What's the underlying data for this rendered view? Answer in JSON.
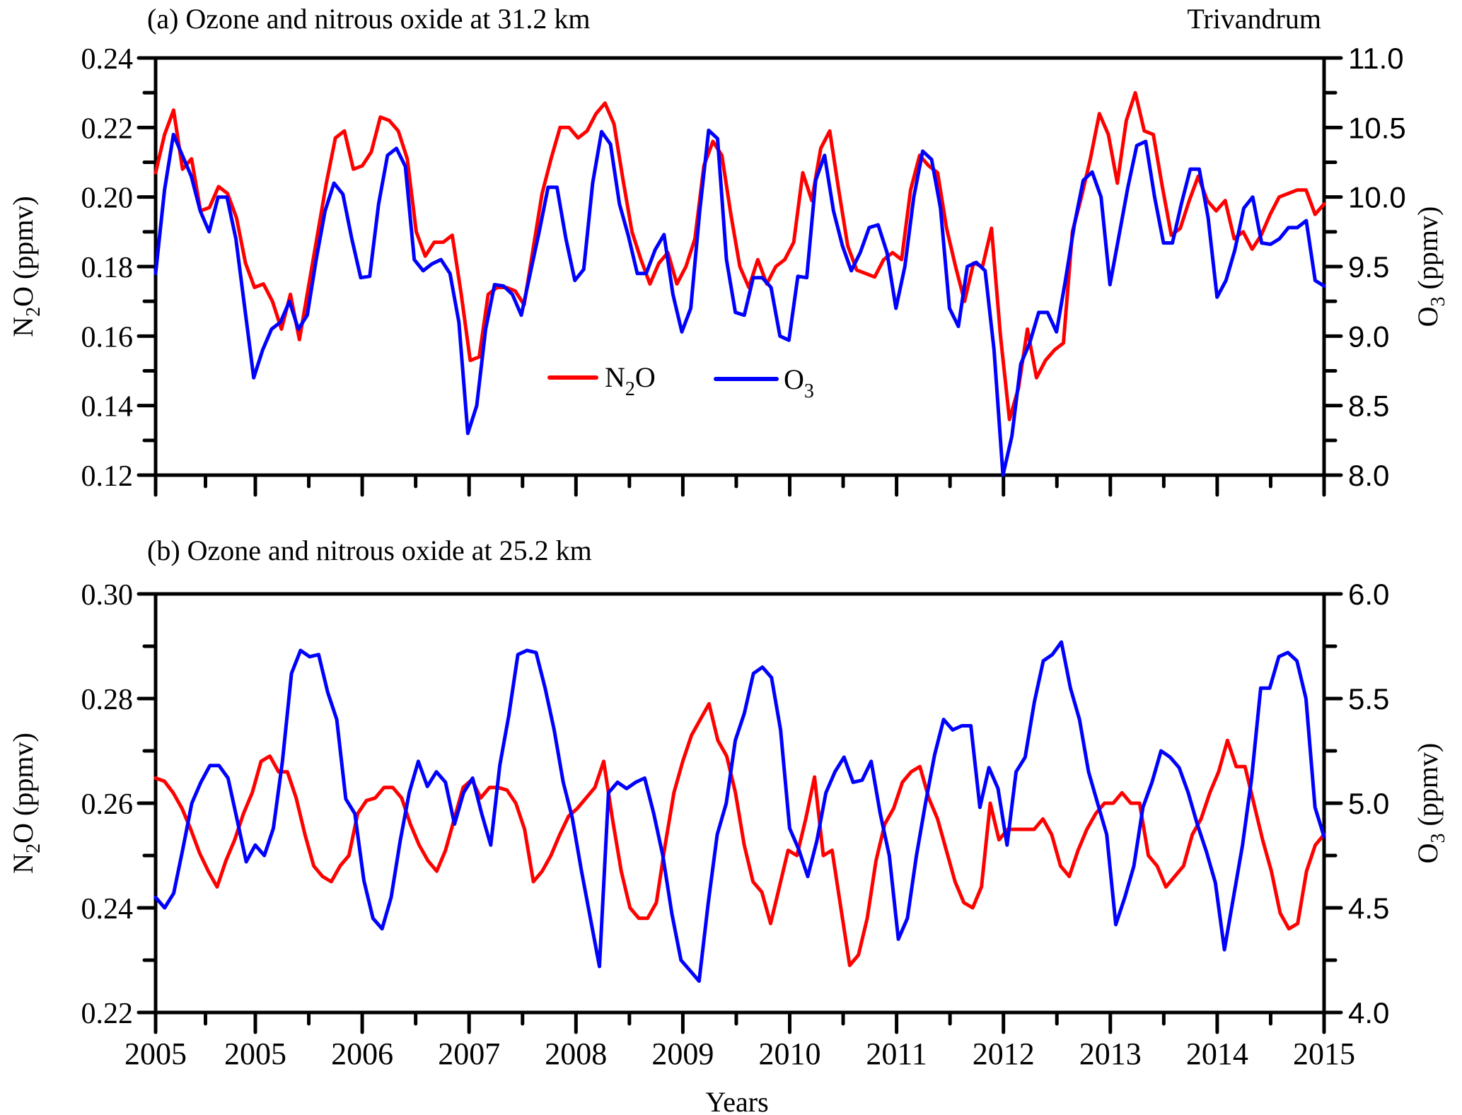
{
  "chart_data": [
    {
      "type": "line",
      "panel": "a",
      "title": "(a) Ozone and  nitrous oxide at 31.2 km",
      "annotation": "Trivandrum",
      "xlabel": "",
      "ylabel_left": {
        "main": "N",
        "sub": "2",
        "rest": "O (ppmv)"
      },
      "ylabel_right": {
        "main": "O",
        "sub": "3",
        "rest": " (ppmv)"
      },
      "ylim_left": [
        0.12,
        0.24
      ],
      "ylim_right": [
        8.0,
        11.0
      ],
      "yticks_left": [
        "0.12",
        "0.14",
        "0.16",
        "0.18",
        "0.20",
        "0.22",
        "0.24"
      ],
      "yticks_right": [
        "8.0",
        "8.5",
        "9.0",
        "9.5",
        "10.0",
        "10.5",
        "11.0"
      ],
      "x_unit": "month index (0-119)",
      "legend": {
        "placement": "center",
        "entries": [
          {
            "name": "N2O",
            "label_main": "N",
            "label_sub": "2",
            "label_rest": "O",
            "color": "#ff0000"
          },
          {
            "name": "O3",
            "label_main": "O",
            "label_sub": "3",
            "label_rest": "",
            "color": "#0000ff"
          }
        ]
      },
      "series": [
        {
          "name": "N2O",
          "axis": "left",
          "color": "#ff0000",
          "values": [
            0.207,
            0.218,
            0.225,
            0.208,
            0.211,
            0.196,
            0.197,
            0.203,
            0.201,
            0.194,
            0.181,
            0.174,
            0.175,
            0.17,
            0.162,
            0.172,
            0.159,
            0.174,
            0.189,
            0.204,
            0.217,
            0.219,
            0.208,
            0.209,
            0.213,
            0.223,
            0.222,
            0.219,
            0.211,
            0.19,
            0.183,
            0.187,
            0.187,
            0.189,
            0.172,
            0.153,
            0.154,
            0.172,
            0.174,
            0.174,
            0.173,
            0.169,
            0.185,
            0.201,
            0.211,
            0.22,
            0.22,
            0.217,
            0.219,
            0.224,
            0.227,
            0.221,
            0.205,
            0.19,
            0.182,
            0.175,
            0.181,
            0.184,
            0.175,
            0.18,
            0.188,
            0.209,
            0.216,
            0.212,
            0.195,
            0.18,
            0.174,
            0.182,
            0.175,
            0.18,
            0.182,
            0.187,
            0.207,
            0.199,
            0.214,
            0.219,
            0.202,
            0.186,
            0.179,
            0.178,
            0.177,
            0.182,
            0.184,
            0.182,
            0.202,
            0.212,
            0.209,
            0.207,
            0.191,
            0.18,
            0.17,
            0.181,
            0.18,
            0.191,
            0.16,
            0.136,
            0.145,
            0.162,
            0.148,
            0.153,
            0.156,
            0.158,
            0.19,
            0.2,
            0.211,
            0.224,
            0.218,
            0.204,
            0.222,
            0.23,
            0.219,
            0.218,
            0.203,
            0.189,
            0.191,
            0.199,
            0.206,
            0.199,
            0.196,
            0.199,
            0.188,
            0.19,
            0.185,
            0.189,
            0.195,
            0.2,
            0.201,
            0.202,
            0.202,
            0.195,
            0.198
          ]
        },
        {
          "name": "O3",
          "axis": "right",
          "color": "#0000ff",
          "values": [
            9.45,
            10.05,
            10.45,
            10.3,
            10.15,
            9.9,
            9.75,
            10.0,
            10.0,
            9.7,
            9.2,
            8.7,
            8.9,
            9.05,
            9.1,
            9.25,
            9.05,
            9.15,
            9.55,
            9.9,
            10.1,
            10.02,
            9.7,
            9.42,
            9.43,
            9.95,
            10.3,
            10.35,
            10.22,
            9.55,
            9.47,
            9.52,
            9.55,
            9.45,
            9.1,
            8.3,
            8.5,
            9.05,
            9.37,
            9.36,
            9.3,
            9.15,
            9.45,
            9.75,
            10.07,
            10.07,
            9.7,
            9.4,
            9.48,
            10.1,
            10.47,
            10.38,
            9.95,
            9.72,
            9.45,
            9.45,
            9.62,
            9.73,
            9.3,
            9.03,
            9.2,
            9.9,
            10.48,
            10.42,
            9.55,
            9.17,
            9.15,
            9.42,
            9.42,
            9.35,
            9.0,
            8.97,
            9.43,
            9.42,
            10.12,
            10.3,
            9.9,
            9.65,
            9.47,
            9.6,
            9.78,
            9.8,
            9.6,
            9.2,
            9.5,
            10.0,
            10.33,
            10.27,
            9.92,
            9.2,
            9.07,
            9.5,
            9.53,
            9.47,
            8.9,
            8.0,
            8.28,
            8.8,
            8.95,
            9.17,
            9.17,
            9.03,
            9.4,
            9.8,
            10.12,
            10.18,
            10.0,
            9.37,
            9.72,
            10.07,
            10.37,
            10.4,
            10.0,
            9.67,
            9.67,
            9.95,
            10.2,
            10.2,
            9.85,
            9.28,
            9.4,
            9.62,
            9.92,
            10.0,
            9.67,
            9.66,
            9.7,
            9.78,
            9.78,
            9.83,
            9.4,
            9.36
          ]
        }
      ]
    },
    {
      "type": "line",
      "panel": "b",
      "title": "(b) Ozone and  nitrous oxide at 25.2 km",
      "xlabel": "Years",
      "ylabel_left": {
        "main": "N",
        "sub": "2",
        "rest": "O (ppmv)"
      },
      "ylabel_right": {
        "main": "O",
        "sub": "3",
        "rest": " (ppmv)"
      },
      "ylim_left": [
        0.22,
        0.3
      ],
      "ylim_right": [
        4.0,
        6.0
      ],
      "yticks_left": [
        "0.22",
        "0.24",
        "0.26",
        "0.28",
        "0.30"
      ],
      "yticks_right": [
        "4.0",
        "4.5",
        "5.0",
        "5.5",
        "6.0"
      ],
      "x_unit": "month index (0-119)",
      "xticks": [
        "2005",
        "2005",
        "2006",
        "2007",
        "2008",
        "2009",
        "2010",
        "2011",
        "2012",
        "2013",
        "2014",
        "2015"
      ],
      "series": [
        {
          "name": "N2O",
          "axis": "left",
          "color": "#ff0000",
          "values": [
            0.2648,
            0.2642,
            0.262,
            0.259,
            0.255,
            0.2505,
            0.247,
            0.244,
            0.249,
            0.253,
            0.258,
            0.262,
            0.268,
            0.269,
            0.266,
            0.266,
            0.261,
            0.254,
            0.248,
            0.246,
            0.245,
            0.248,
            0.25,
            0.258,
            0.2605,
            0.261,
            0.263,
            0.263,
            0.261,
            0.256,
            0.252,
            0.249,
            0.247,
            0.251,
            0.257,
            0.263,
            0.2645,
            0.261,
            0.263,
            0.263,
            0.2625,
            0.26,
            0.255,
            0.245,
            0.247,
            0.25,
            0.254,
            0.2575,
            0.259,
            0.261,
            0.263,
            0.268,
            0.257,
            0.247,
            0.24,
            0.238,
            0.238,
            0.241,
            0.252,
            0.262,
            0.268,
            0.273,
            0.276,
            0.279,
            0.272,
            0.269,
            0.262,
            0.252,
            0.245,
            0.243,
            0.237,
            0.244,
            0.251,
            0.25,
            0.257,
            0.265,
            0.25,
            0.251,
            0.24,
            0.229,
            0.231,
            0.238,
            0.249,
            0.256,
            0.259,
            0.264,
            0.266,
            0.267,
            0.261,
            0.257,
            0.251,
            0.245,
            0.241,
            0.24,
            0.244,
            0.26,
            0.253,
            0.255,
            0.255,
            0.255,
            0.255,
            0.257,
            0.254,
            0.248,
            0.246,
            0.251,
            0.255,
            0.258,
            0.26,
            0.26,
            0.262,
            0.26,
            0.26,
            0.25,
            0.248,
            0.244,
            0.246,
            0.248,
            0.254,
            0.257,
            0.262,
            0.266,
            0.272,
            0.267,
            0.267,
            0.26,
            0.253,
            0.247,
            0.239,
            0.236,
            0.237,
            0.247,
            0.252,
            0.254
          ]
        },
        {
          "name": "O3",
          "axis": "right",
          "color": "#0000ff",
          "values": [
            4.55,
            4.5,
            4.57,
            4.78,
            5.0,
            5.1,
            5.18,
            5.18,
            5.12,
            4.92,
            4.72,
            4.8,
            4.75,
            4.88,
            5.2,
            5.62,
            5.73,
            5.7,
            5.71,
            5.53,
            5.4,
            5.02,
            4.95,
            4.63,
            4.45,
            4.4,
            4.55,
            4.82,
            5.05,
            5.2,
            5.08,
            5.15,
            5.1,
            4.9,
            5.05,
            5.12,
            4.95,
            4.8,
            5.18,
            5.42,
            5.71,
            5.73,
            5.72,
            5.55,
            5.35,
            5.1,
            4.93,
            4.68,
            4.45,
            4.22,
            5.05,
            5.1,
            5.07,
            5.1,
            5.12,
            4.95,
            4.75,
            4.47,
            4.25,
            4.2,
            4.15,
            4.52,
            4.85,
            5.0,
            5.3,
            5.43,
            5.62,
            5.65,
            5.6,
            5.35,
            4.88,
            4.78,
            4.65,
            4.82,
            5.05,
            5.15,
            5.22,
            5.1,
            5.11,
            5.2,
            4.95,
            4.75,
            4.35,
            4.45,
            4.75,
            5.0,
            5.23,
            5.4,
            5.35,
            5.37,
            5.37,
            4.98,
            5.17,
            5.07,
            4.8,
            5.15,
            5.22,
            5.48,
            5.68,
            5.71,
            5.77,
            5.55,
            5.4,
            5.15,
            5.0,
            4.85,
            4.42,
            4.55,
            4.7,
            4.98,
            5.1,
            5.25,
            5.22,
            5.17,
            5.05,
            4.9,
            4.77,
            4.62,
            4.3,
            4.55,
            4.8,
            5.12,
            5.55,
            5.55,
            5.7,
            5.72,
            5.68,
            5.5,
            4.98,
            4.84
          ]
        }
      ]
    }
  ]
}
